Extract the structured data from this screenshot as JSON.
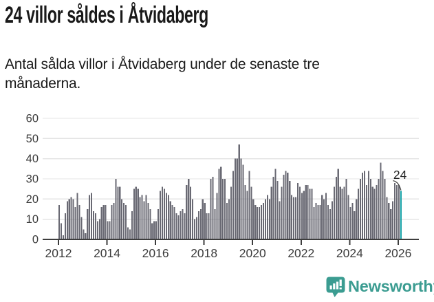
{
  "header": {
    "title": "24 villor såldes i Åtvidaberg",
    "subtitle": "Antal sålda villor i Åtvidaberg under de senaste tre månaderna."
  },
  "chart_data": {
    "type": "bar",
    "title": "24 villor såldes i Åtvidaberg",
    "subtitle": "Antal sålda villor i Åtvidaberg under de senaste tre månaderna.",
    "start": "2012-01",
    "frequency": "monthly",
    "x_tick_labels": [
      "2012",
      "2014",
      "2016",
      "2018",
      "2020",
      "2022",
      "2024",
      "2026"
    ],
    "y_ticks": [
      0,
      10,
      20,
      30,
      40,
      50,
      60
    ],
    "ylim": [
      0,
      60
    ],
    "grid": true,
    "legend": "none",
    "values": [
      17,
      8,
      2,
      13,
      19,
      20,
      21,
      20,
      16,
      23,
      17,
      11,
      5,
      3,
      15,
      22,
      23,
      14,
      13,
      9,
      10,
      16,
      17,
      17,
      9,
      9,
      17,
      18,
      30,
      26,
      26,
      20,
      18,
      17,
      6,
      5,
      14,
      25,
      26,
      25,
      21,
      22,
      19,
      22,
      18,
      15,
      8,
      9,
      9,
      15,
      24,
      26,
      25,
      23,
      22,
      19,
      17,
      16,
      13,
      12,
      14,
      15,
      13,
      27,
      30,
      26,
      20,
      10,
      11,
      14,
      15,
      20,
      18,
      13,
      13,
      30,
      31,
      15,
      23,
      35,
      36,
      30,
      30,
      18,
      20,
      26,
      34,
      40,
      40,
      47,
      40,
      37,
      27,
      24,
      34,
      26,
      20,
      17,
      16,
      16,
      17,
      18,
      20,
      22,
      20,
      26,
      31,
      35,
      29,
      19,
      26,
      32,
      34,
      33,
      29,
      22,
      21,
      21,
      28,
      26,
      23,
      24,
      27,
      27,
      25,
      25,
      16,
      18,
      17,
      17,
      22,
      20,
      23,
      17,
      15,
      19,
      26,
      31,
      35,
      26,
      25,
      26,
      30,
      22,
      16,
      18,
      14,
      20,
      25,
      30,
      33,
      34,
      27,
      34,
      30,
      26,
      25,
      27,
      30,
      38,
      34,
      30,
      21,
      18,
      15,
      19,
      28,
      27,
      27,
      24
    ],
    "highlight": {
      "index": 169,
      "value": 24,
      "label": "24"
    },
    "colors": {
      "bar": "#696973",
      "highlight": "#14a1a6",
      "grid": "#e4e4e4",
      "axis": "#3d3d3d",
      "annotation_text": "#222222"
    }
  },
  "footer": {
    "brand": "Newsworthy",
    "logo_icon": "newsworthy-bar-chart-bubble-icon",
    "brand_color": "#3b9c91"
  }
}
